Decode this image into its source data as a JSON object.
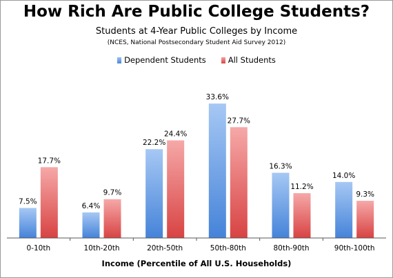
{
  "chart_data": {
    "type": "bar",
    "title": "How Rich Are Public College Students?",
    "subtitle": "Students at 4-Year Public Colleges by Income",
    "source": "(NCES, National Postsecondary Student Aid Survey 2012)",
    "xlabel": "Income (Percentile of All U.S. Households)",
    "ylabel": "",
    "ylim": [
      0,
      36
    ],
    "grid": false,
    "legend_position": "top",
    "categories": [
      "0-10th",
      "10th-20th",
      "20th-50th",
      "50th-80th",
      "80th-90th",
      "90th-100th"
    ],
    "series": [
      {
        "name": "Dependent Students",
        "values": [
          7.5,
          6.4,
          22.2,
          33.6,
          16.3,
          14.0
        ],
        "labels": [
          "7.5%",
          "6.4%",
          "22.2%",
          "33.6%",
          "16.3%",
          "14.0%"
        ],
        "color": "#5b8fd6"
      },
      {
        "name": "All Students",
        "values": [
          17.7,
          9.7,
          24.4,
          27.7,
          11.2,
          9.3
        ],
        "labels": [
          "17.7%",
          "9.7%",
          "24.4%",
          "27.7%",
          "11.2%",
          "9.3%"
        ],
        "color": "#e2585a"
      }
    ]
  }
}
